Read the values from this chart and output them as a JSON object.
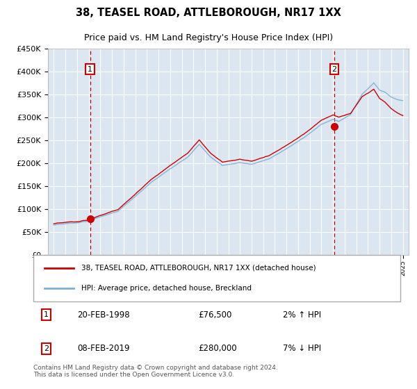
{
  "title": "38, TEASEL ROAD, ATTLEBOROUGH, NR17 1XX",
  "subtitle": "Price paid vs. HM Land Registry's House Price Index (HPI)",
  "legend_line1": "38, TEASEL ROAD, ATTLEBOROUGH, NR17 1XX (detached house)",
  "legend_line2": "HPI: Average price, detached house, Breckland",
  "transaction1_date": "20-FEB-1998",
  "transaction1_price": "£76,500",
  "transaction1_hpi": "2% ↑ HPI",
  "transaction1_year": 1998.13,
  "transaction1_value": 76500,
  "transaction2_date": "08-FEB-2019",
  "transaction2_price": "£280,000",
  "transaction2_hpi": "7% ↓ HPI",
  "transaction2_year": 2019.11,
  "transaction2_value": 280000,
  "plot_bg_color": "#dce6f1",
  "line1_color": "#cc0000",
  "line2_color": "#7bafd4",
  "grid_color": "#ffffff",
  "vline_color": "#cc0000",
  "box_edge_color": "#cc0000",
  "ylim": [
    0,
    450000
  ],
  "xlim": [
    1994.5,
    2025.5
  ],
  "footer": "Contains HM Land Registry data © Crown copyright and database right 2024.\nThis data is licensed under the Open Government Licence v3.0."
}
